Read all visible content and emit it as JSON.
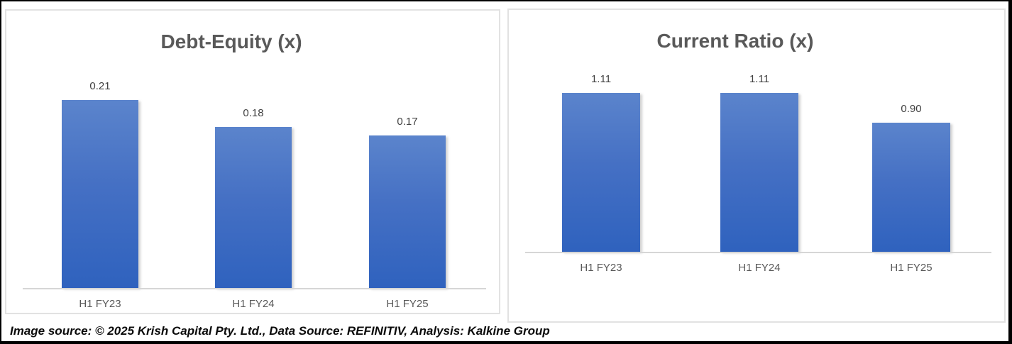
{
  "colors": {
    "bar_gradient_top": "#5b84cc",
    "bar_gradient_bottom": "#2f62be",
    "title_text": "#595959",
    "data_label_text": "#404040",
    "category_label_text": "#595959",
    "axis_line": "#d6d6d6",
    "panel_border": "#e2e2e2",
    "frame_border": "#000000"
  },
  "footer": {
    "text": "Image source: © 2025 Krish Capital Pty. Ltd., Data Source: REFINITIV, Analysis: Kalkine Group"
  },
  "chart_data": [
    {
      "type": "bar",
      "title": "Debt-Equity (x)",
      "categories": [
        "H1 FY23",
        "H1 FY24",
        "H1 FY25"
      ],
      "values": [
        0.21,
        0.18,
        0.17
      ],
      "data_labels": [
        "0.21",
        "0.18",
        "0.17"
      ],
      "xlabel": "",
      "ylabel": "",
      "ylim": [
        0,
        0.31
      ],
      "grid": false,
      "legend": false,
      "y_axis_visible": false,
      "data_labels_position": "above-bar"
    },
    {
      "type": "bar",
      "title": "Current Ratio (x)",
      "categories": [
        "H1 FY23",
        "H1 FY24",
        "H1 FY25"
      ],
      "values": [
        1.11,
        1.11,
        0.9
      ],
      "data_labels": [
        "1.11",
        "1.11",
        "0.90"
      ],
      "xlabel": "",
      "ylabel": "",
      "ylim": [
        0,
        1.69
      ],
      "grid": false,
      "legend": false,
      "y_axis_visible": false,
      "data_labels_position": "above-bar"
    }
  ]
}
